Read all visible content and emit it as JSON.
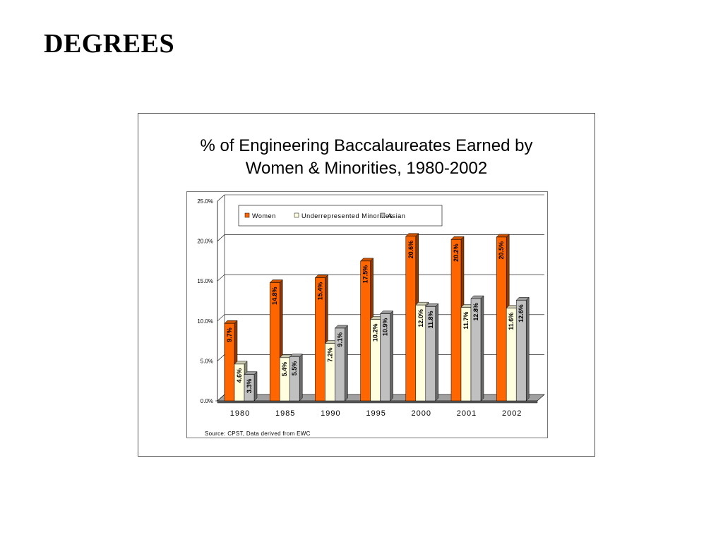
{
  "slide": {
    "title": "DEGREES"
  },
  "chart_data": {
    "type": "bar",
    "title_lines": [
      "% of Engineering Baccalaureates Earned by",
      "Women & Minorities, 1980-2002"
    ],
    "categories": [
      "1980",
      "1985",
      "1990",
      "1995",
      "2000",
      "2001",
      "2002"
    ],
    "series": [
      {
        "name": "Women",
        "values": [
          9.7,
          14.8,
          15.4,
          17.5,
          20.6,
          20.2,
          20.5
        ],
        "labels": [
          "9.7%",
          "14.8%",
          "15.4%",
          "17.5%",
          "20.6%",
          "20.2%",
          "20.5%"
        ],
        "color": "#FF6600"
      },
      {
        "name": "Underrepresented Minorities",
        "values": [
          4.6,
          5.4,
          7.2,
          10.2,
          12.0,
          11.7,
          11.6
        ],
        "labels": [
          "4.6%",
          "5.4%",
          "7.2%",
          "10.2%",
          "12.0%",
          "11.7%",
          "11.6%"
        ],
        "color": "#FFFFE0"
      },
      {
        "name": "Asian",
        "values": [
          3.3,
          5.5,
          9.1,
          10.9,
          11.8,
          12.8,
          12.6
        ],
        "labels": [
          "3.3%",
          "5.5%",
          "9.1%",
          "10.9%",
          "11.8%",
          "12.8%",
          "12.6%"
        ],
        "color": "#C0C0C0"
      }
    ],
    "y_ticks": [
      "0.0%",
      "5.0%",
      "10.0%",
      "15.0%",
      "20.0%",
      "25.0%"
    ],
    "ylim": [
      0,
      25
    ],
    "grid": true,
    "three_d": true,
    "legend_position": "top-center",
    "source_note": "Source:  CPST, Data derived from EWC"
  }
}
